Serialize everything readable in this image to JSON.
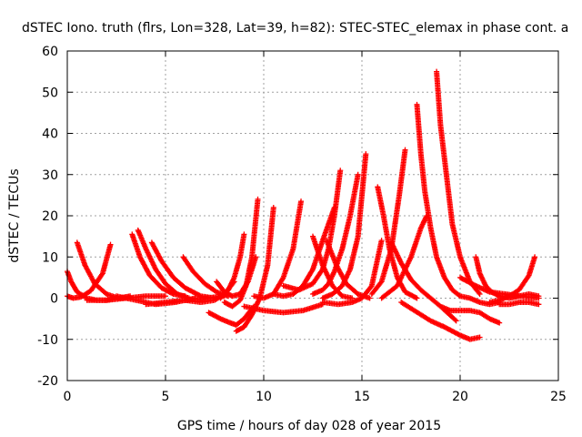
{
  "chart_data": {
    "type": "scatter",
    "title": "dSTEC Iono. truth (flrs, Lon=328, Lat=39, h=82): STEC-STEC_elemax in phase cont. a",
    "xlabel": "GPS time / hours of day 028 of year 2015",
    "ylabel": "dSTEC  / TECUs",
    "xlim": [
      0,
      25
    ],
    "ylim": [
      -20,
      60
    ],
    "xticks": [
      0,
      5,
      10,
      15,
      20,
      25
    ],
    "yticks": [
      -20,
      -10,
      0,
      10,
      20,
      30,
      40,
      50,
      60
    ],
    "grid": true,
    "marker": "plus",
    "color": "#ff0000",
    "series": [
      {
        "x": [
          0.0,
          0.3,
          0.7,
          1.2,
          1.8,
          2.2
        ],
        "y": [
          0.5,
          0.0,
          0.3,
          1.8,
          6.0,
          13.0
        ]
      },
      {
        "x": [
          0.0,
          0.2,
          0.5,
          1.0,
          1.5,
          2.0,
          2.5
        ],
        "y": [
          6.5,
          4.0,
          1.5,
          0.0,
          -0.5,
          -0.5,
          0.0
        ]
      },
      {
        "x": [
          0.5,
          0.9,
          1.4,
          2.0,
          2.6,
          3.2
        ],
        "y": [
          13.5,
          8.0,
          3.5,
          1.0,
          0.0,
          0.5
        ]
      },
      {
        "x": [
          1.0,
          2.0,
          3.0,
          4.0,
          5.0
        ],
        "y": [
          -0.5,
          -0.5,
          0.0,
          0.5,
          0.5
        ]
      },
      {
        "x": [
          3.3,
          3.7,
          4.2,
          4.8,
          5.4,
          6.0
        ],
        "y": [
          15.5,
          10.0,
          5.5,
          2.5,
          1.0,
          0.5
        ]
      },
      {
        "x": [
          3.6,
          4.0,
          4.5,
          5.0,
          5.6,
          6.2
        ],
        "y": [
          16.5,
          12.0,
          7.0,
          3.5,
          1.0,
          0.0
        ]
      },
      {
        "x": [
          4.3,
          4.8,
          5.4,
          6.0,
          6.8,
          7.5
        ],
        "y": [
          13.5,
          9.0,
          5.0,
          2.5,
          0.5,
          0.0
        ]
      },
      {
        "x": [
          4.0,
          5.0,
          6.0,
          7.0,
          8.0
        ],
        "y": [
          -1.5,
          -1.0,
          -0.5,
          0.0,
          0.5
        ]
      },
      {
        "x": [
          2.5,
          3.5,
          4.5,
          5.5,
          6.5
        ],
        "y": [
          0.5,
          -0.5,
          -1.5,
          -1.0,
          0.0
        ]
      },
      {
        "x": [
          5.9,
          6.4,
          7.0,
          7.6,
          8.2
        ],
        "y": [
          10.0,
          6.5,
          3.5,
          1.5,
          0.5
        ]
      },
      {
        "x": [
          6.0,
          6.8,
          7.5,
          8.0,
          8.5
        ],
        "y": [
          -0.5,
          -1.0,
          -0.5,
          1.0,
          4.0
        ]
      },
      {
        "x": [
          7.2,
          7.8,
          8.3,
          8.6,
          9.0,
          9.5
        ],
        "y": [
          -3.5,
          -5.0,
          -6.0,
          -6.5,
          -5.0,
          -2.0
        ]
      },
      {
        "x": [
          7.6,
          8.0,
          8.4,
          8.8,
          9.2,
          9.6
        ],
        "y": [
          4.0,
          1.5,
          0.5,
          1.0,
          4.0,
          10.0
        ]
      },
      {
        "x": [
          8.0,
          8.4,
          8.8,
          9.1,
          9.4,
          9.7
        ],
        "y": [
          -1.0,
          -2.0,
          -0.5,
          3.0,
          10.0,
          24.0
        ]
      },
      {
        "x": [
          8.6,
          9.0,
          9.4,
          9.8,
          10.2,
          10.5
        ],
        "y": [
          -8.0,
          -7.0,
          -4.0,
          0.0,
          8.0,
          22.0
        ]
      },
      {
        "x": [
          7.8,
          8.2,
          8.5,
          8.8,
          9.0
        ],
        "y": [
          0.0,
          2.0,
          5.0,
          10.0,
          15.5
        ]
      },
      {
        "x": [
          9.5,
          10.0,
          10.5,
          11.0,
          11.5,
          11.9
        ],
        "y": [
          0.5,
          0.0,
          1.0,
          5.0,
          12.0,
          23.5
        ]
      },
      {
        "x": [
          9.0,
          10.0,
          11.0,
          12.0,
          13.0
        ],
        "y": [
          -2.0,
          -3.0,
          -3.5,
          -3.0,
          -1.5
        ]
      },
      {
        "x": [
          10.5,
          11.0,
          11.5,
          12.0,
          12.5,
          13.0,
          13.6
        ],
        "y": [
          1.0,
          0.5,
          1.0,
          3.0,
          7.0,
          14.0,
          22.0
        ]
      },
      {
        "x": [
          11.0,
          11.8,
          12.5,
          13.0,
          13.3,
          13.6,
          13.9
        ],
        "y": [
          3.0,
          2.0,
          3.5,
          7.0,
          12.0,
          20.0,
          31.0
        ]
      },
      {
        "x": [
          12.5,
          13.0,
          13.3,
          13.6,
          14.0,
          14.4,
          14.8
        ],
        "y": [
          1.0,
          2.0,
          3.5,
          6.5,
          12.0,
          20.0,
          30.0
        ]
      },
      {
        "x": [
          13.0,
          13.5,
          14.0,
          14.4,
          14.8,
          15.0,
          15.2
        ],
        "y": [
          0.0,
          1.0,
          3.0,
          7.0,
          15.0,
          25.0,
          35.0
        ]
      },
      {
        "x": [
          13.0,
          13.8,
          14.5,
          15.0,
          15.5,
          16.0
        ],
        "y": [
          -1.0,
          -1.5,
          -1.0,
          0.0,
          3.0,
          14.0
        ]
      },
      {
        "x": [
          12.5,
          13.0,
          13.5,
          14.0,
          14.5
        ],
        "y": [
          15.0,
          8.0,
          3.0,
          0.5,
          0.0
        ]
      },
      {
        "x": [
          13.2,
          13.7,
          14.2,
          14.8,
          15.4
        ],
        "y": [
          14.0,
          8.0,
          3.5,
          1.0,
          0.0
        ]
      },
      {
        "x": [
          15.8,
          16.1,
          16.4,
          16.8,
          17.2,
          17.8
        ],
        "y": [
          27.0,
          20.0,
          12.0,
          5.0,
          1.5,
          0.0
        ]
      },
      {
        "x": [
          15.5,
          16.0,
          16.5,
          16.9,
          17.2
        ],
        "y": [
          1.0,
          4.0,
          12.0,
          25.0,
          36.0
        ]
      },
      {
        "x": [
          16.5,
          17.0,
          17.5,
          18.0,
          18.5,
          19.0,
          19.8
        ],
        "y": [
          13.5,
          8.5,
          4.5,
          2.0,
          0.0,
          -2.0,
          -5.5
        ]
      },
      {
        "x": [
          17.0,
          17.5,
          18.0,
          18.5,
          19.2,
          20.0,
          20.5,
          21.0
        ],
        "y": [
          -1.0,
          -2.5,
          -4.0,
          -5.5,
          -7.0,
          -9.0,
          -10.0,
          -9.5
        ]
      },
      {
        "x": [
          17.8,
          18.0,
          18.2,
          18.5,
          18.8,
          19.2,
          19.6,
          20.0
        ],
        "y": [
          47.0,
          35.0,
          26.0,
          17.0,
          10.0,
          5.0,
          2.0,
          0.5
        ]
      },
      {
        "x": [
          18.8,
          19.0,
          19.3,
          19.6,
          20.0,
          20.5,
          21.0
        ],
        "y": [
          55.0,
          42.0,
          30.0,
          18.0,
          10.0,
          4.0,
          1.0
        ]
      },
      {
        "x": [
          16.0,
          16.8,
          17.5,
          18.0,
          18.3
        ],
        "y": [
          0.0,
          3.0,
          10.0,
          17.0,
          20.0
        ]
      },
      {
        "x": [
          19.0,
          19.5,
          20.0,
          20.5,
          21.0,
          21.5,
          22.0
        ],
        "y": [
          -2.0,
          -3.0,
          -3.0,
          -3.0,
          -3.5,
          -5.0,
          -6.0
        ]
      },
      {
        "x": [
          20.8,
          21.0,
          21.3,
          21.6,
          22.0,
          22.5,
          23.0
        ],
        "y": [
          10.0,
          6.0,
          3.0,
          1.5,
          0.5,
          0.0,
          0.5
        ]
      },
      {
        "x": [
          20.0,
          20.5,
          21.0,
          21.5,
          22.0
        ],
        "y": [
          0.5,
          0.0,
          -1.0,
          -1.5,
          -1.0
        ]
      },
      {
        "x": [
          21.5,
          22.0,
          22.5,
          23.0,
          23.5,
          23.8
        ],
        "y": [
          -1.0,
          -0.5,
          0.5,
          2.0,
          5.5,
          10.0
        ]
      },
      {
        "x": [
          22.0,
          22.5,
          23.0,
          23.5,
          24.0
        ],
        "y": [
          -1.5,
          -1.5,
          -1.0,
          -1.0,
          -1.5
        ]
      },
      {
        "x": [
          20.0,
          20.8,
          21.5,
          22.3,
          23.0,
          24.0
        ],
        "y": [
          5.0,
          3.0,
          1.5,
          1.0,
          0.5,
          0.0
        ]
      },
      {
        "x": [
          22.5,
          23.0,
          23.5,
          24.0
        ],
        "y": [
          0.0,
          0.5,
          1.0,
          0.5
        ]
      }
    ]
  }
}
